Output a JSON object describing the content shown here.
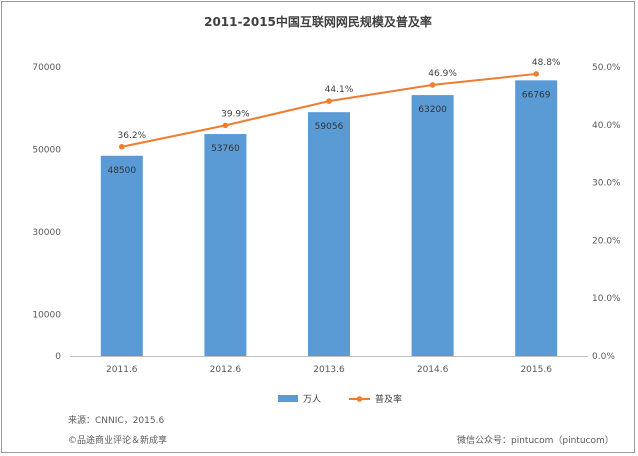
{
  "colors": {
    "bar": "#5b9bd5",
    "line": "#ed7d31",
    "axis": "#bfbfbf",
    "text": "#595959"
  },
  "chart_data": {
    "type": "bar",
    "title": "2011-2015中国互联网网民规模及普及率",
    "categories": [
      "2011.6",
      "2012.6",
      "2013.6",
      "2014.6",
      "2015.6"
    ],
    "series": [
      {
        "name": "万人",
        "type": "bar",
        "axis": "left",
        "values": [
          48500,
          53760,
          59056,
          63200,
          66769
        ],
        "labels": [
          "48500",
          "53760",
          "59056",
          "63200",
          "66769"
        ]
      },
      {
        "name": "普及率",
        "type": "line",
        "axis": "right",
        "values": [
          36.2,
          39.9,
          44.1,
          46.9,
          48.8
        ],
        "labels": [
          "36.2%",
          "39.9%",
          "44.1%",
          "46.9%",
          "48.8%"
        ]
      }
    ],
    "y_left": {
      "ylim": [
        0,
        70000
      ],
      "ticks": [
        {
          "value": 0,
          "label": "0"
        },
        {
          "value": 10000,
          "label": "10000"
        },
        {
          "value": 30000,
          "label": "30000"
        },
        {
          "value": 50000,
          "label": "50000"
        },
        {
          "value": 70000,
          "label": "70000"
        }
      ]
    },
    "y_right": {
      "ylim": [
        0,
        50
      ],
      "ticks": [
        {
          "value": 0,
          "label": "0.0%"
        },
        {
          "value": 10,
          "label": "10.0%"
        },
        {
          "value": 20,
          "label": "20.0%"
        },
        {
          "value": 30,
          "label": "30.0%"
        },
        {
          "value": 40,
          "label": "40.0%"
        },
        {
          "value": 50,
          "label": "50.0%"
        }
      ]
    },
    "grid": false,
    "legend": "bottom"
  },
  "footer": {
    "source": "来源：CNNIC，2015.6",
    "copyright": "©品途商业评论＆新成享",
    "wechat": "微信公众号：pintucom（pintucom）"
  }
}
